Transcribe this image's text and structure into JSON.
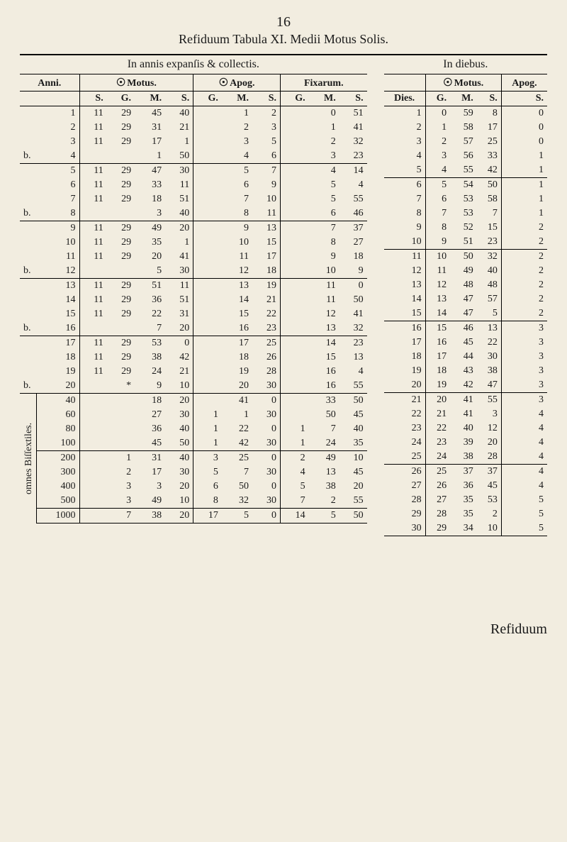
{
  "page_number": "16",
  "title_line": "Refiduum Tabula XI. Medii Motus Solis.",
  "left_caption": "In annis expanſis & collectis.",
  "right_caption": "In diebus.",
  "footer": "Refiduum",
  "left": {
    "head": {
      "anni": "Anni.",
      "motus": "Motus.",
      "apog": "Apog.",
      "fixarum": "Fixarum.",
      "sub": [
        "S.",
        "G.",
        "M.",
        "S.",
        "G.",
        "M.",
        "S.",
        "G.",
        "M.",
        "S."
      ]
    },
    "side_label": "omnes Biſſextiles.",
    "groups": [
      {
        "label": "",
        "rows": [
          {
            "lab": "",
            "n": "1",
            "c": [
              "11",
              "29",
              "45",
              "40",
              "",
              "1",
              "2",
              "",
              "0",
              "51"
            ]
          },
          {
            "lab": "",
            "n": "2",
            "c": [
              "11",
              "29",
              "31",
              "21",
              "",
              "2",
              "3",
              "",
              "1",
              "41"
            ]
          },
          {
            "lab": "",
            "n": "3",
            "c": [
              "11",
              "29",
              "17",
              "1",
              "",
              "3",
              "5",
              "",
              "2",
              "32"
            ]
          },
          {
            "lab": "b.",
            "n": "4",
            "c": [
              "",
              "",
              "1",
              "50",
              "",
              "4",
              "6",
              "",
              "3",
              "23"
            ]
          }
        ]
      },
      {
        "label": "",
        "rows": [
          {
            "lab": "",
            "n": "5",
            "c": [
              "11",
              "29",
              "47",
              "30",
              "",
              "5",
              "7",
              "",
              "4",
              "14"
            ]
          },
          {
            "lab": "",
            "n": "6",
            "c": [
              "11",
              "29",
              "33",
              "11",
              "",
              "6",
              "9",
              "",
              "5",
              "4"
            ]
          },
          {
            "lab": "",
            "n": "7",
            "c": [
              "11",
              "29",
              "18",
              "51",
              "",
              "7",
              "10",
              "",
              "5",
              "55"
            ]
          },
          {
            "lab": "b.",
            "n": "8",
            "c": [
              "",
              "",
              "3",
              "40",
              "",
              "8",
              "11",
              "",
              "6",
              "46"
            ]
          }
        ]
      },
      {
        "label": "",
        "rows": [
          {
            "lab": "",
            "n": "9",
            "c": [
              "11",
              "29",
              "49",
              "20",
              "",
              "9",
              "13",
              "",
              "7",
              "37"
            ]
          },
          {
            "lab": "",
            "n": "10",
            "c": [
              "11",
              "29",
              "35",
              "1",
              "",
              "10",
              "15",
              "",
              "8",
              "27"
            ]
          },
          {
            "lab": "",
            "n": "11",
            "c": [
              "11",
              "29",
              "20",
              "41",
              "",
              "11",
              "17",
              "",
              "9",
              "18"
            ]
          },
          {
            "lab": "b.",
            "n": "12",
            "c": [
              "",
              "",
              "5",
              "30",
              "",
              "12",
              "18",
              "",
              "10",
              "9"
            ]
          }
        ]
      },
      {
        "label": "",
        "rows": [
          {
            "lab": "",
            "n": "13",
            "c": [
              "11",
              "29",
              "51",
              "11",
              "",
              "13",
              "19",
              "",
              "11",
              "0"
            ]
          },
          {
            "lab": "",
            "n": "14",
            "c": [
              "11",
              "29",
              "36",
              "51",
              "",
              "14",
              "21",
              "",
              "11",
              "50"
            ]
          },
          {
            "lab": "",
            "n": "15",
            "c": [
              "11",
              "29",
              "22",
              "31",
              "",
              "15",
              "22",
              "",
              "12",
              "41"
            ]
          },
          {
            "lab": "b.",
            "n": "16",
            "c": [
              "",
              "",
              "7",
              "20",
              "",
              "16",
              "23",
              "",
              "13",
              "32"
            ]
          }
        ]
      },
      {
        "label": "",
        "rows": [
          {
            "lab": "",
            "n": "17",
            "c": [
              "11",
              "29",
              "53",
              "0",
              "",
              "17",
              "25",
              "",
              "14",
              "23"
            ]
          },
          {
            "lab": "",
            "n": "18",
            "c": [
              "11",
              "29",
              "38",
              "42",
              "",
              "18",
              "26",
              "",
              "15",
              "13"
            ]
          },
          {
            "lab": "",
            "n": "19",
            "c": [
              "11",
              "29",
              "24",
              "21",
              "",
              "19",
              "28",
              "",
              "16",
              "4"
            ]
          },
          {
            "lab": "b.",
            "n": "20",
            "c": [
              "",
              "*",
              "9",
              "10",
              "",
              "20",
              "30",
              "",
              "16",
              "55"
            ]
          }
        ]
      },
      {
        "label": "omnes Biſſextiles.",
        "rows": [
          {
            "lab": "",
            "n": "40",
            "c": [
              "",
              "",
              "18",
              "20",
              "",
              "41",
              "0",
              "",
              "33",
              "50"
            ]
          },
          {
            "lab": "",
            "n": "60",
            "c": [
              "",
              "",
              "27",
              "30",
              "1",
              "1",
              "30",
              "",
              "50",
              "45"
            ]
          },
          {
            "lab": "",
            "n": "80",
            "c": [
              "",
              "",
              "36",
              "40",
              "1",
              "22",
              "0",
              "1",
              "7",
              "40"
            ]
          },
          {
            "lab": "",
            "n": "100",
            "c": [
              "",
              "",
              "45",
              "50",
              "1",
              "42",
              "30",
              "1",
              "24",
              "35"
            ]
          }
        ]
      },
      {
        "label": "",
        "rows": [
          {
            "lab": "",
            "n": "200",
            "c": [
              "",
              "1",
              "31",
              "40",
              "3",
              "25",
              "0",
              "2",
              "49",
              "10"
            ]
          },
          {
            "lab": "",
            "n": "300",
            "c": [
              "",
              "2",
              "17",
              "30",
              "5",
              "7",
              "30",
              "4",
              "13",
              "45"
            ]
          },
          {
            "lab": "",
            "n": "400",
            "c": [
              "",
              "3",
              "3",
              "20",
              "6",
              "50",
              "0",
              "5",
              "38",
              "20"
            ]
          },
          {
            "lab": "",
            "n": "500",
            "c": [
              "",
              "3",
              "49",
              "10",
              "8",
              "32",
              "30",
              "7",
              "2",
              "55"
            ]
          }
        ]
      },
      {
        "label": "",
        "rows": [
          {
            "lab": "",
            "n": "1000",
            "c": [
              "",
              "7",
              "38",
              "20",
              "17",
              "5",
              "0",
              "14",
              "5",
              "50"
            ]
          }
        ]
      }
    ]
  },
  "right": {
    "head": {
      "dies": "Dies.",
      "motus": "Motus.",
      "apog": "Apog.",
      "sub": [
        "G.",
        "M.",
        "S.",
        "S."
      ]
    },
    "rows": [
      [
        "1",
        "0",
        "59",
        "8",
        "0"
      ],
      [
        "2",
        "1",
        "58",
        "17",
        "0"
      ],
      [
        "3",
        "2",
        "57",
        "25",
        "0"
      ],
      [
        "4",
        "3",
        "56",
        "33",
        "1"
      ],
      [
        "5",
        "4",
        "55",
        "42",
        "1"
      ],
      [
        "6",
        "5",
        "54",
        "50",
        "1"
      ],
      [
        "7",
        "6",
        "53",
        "58",
        "1"
      ],
      [
        "8",
        "7",
        "53",
        "7",
        "1"
      ],
      [
        "9",
        "8",
        "52",
        "15",
        "2"
      ],
      [
        "10",
        "9",
        "51",
        "23",
        "2"
      ],
      [
        "11",
        "10",
        "50",
        "32",
        "2"
      ],
      [
        "12",
        "11",
        "49",
        "40",
        "2"
      ],
      [
        "13",
        "12",
        "48",
        "48",
        "2"
      ],
      [
        "14",
        "13",
        "47",
        "57",
        "2"
      ],
      [
        "15",
        "14",
        "47",
        "5",
        "2"
      ],
      [
        "16",
        "15",
        "46",
        "13",
        "3"
      ],
      [
        "17",
        "16",
        "45",
        "22",
        "3"
      ],
      [
        "18",
        "17",
        "44",
        "30",
        "3"
      ],
      [
        "19",
        "18",
        "43",
        "38",
        "3"
      ],
      [
        "20",
        "19",
        "42",
        "47",
        "3"
      ],
      [
        "21",
        "20",
        "41",
        "55",
        "3"
      ],
      [
        "22",
        "21",
        "41",
        "3",
        "4"
      ],
      [
        "23",
        "22",
        "40",
        "12",
        "4"
      ],
      [
        "24",
        "23",
        "39",
        "20",
        "4"
      ],
      [
        "25",
        "24",
        "38",
        "28",
        "4"
      ],
      [
        "26",
        "25",
        "37",
        "37",
        "4"
      ],
      [
        "27",
        "26",
        "36",
        "45",
        "4"
      ],
      [
        "28",
        "27",
        "35",
        "53",
        "5"
      ],
      [
        "29",
        "28",
        "35",
        "2",
        "5"
      ],
      [
        "30",
        "29",
        "34",
        "10",
        "5"
      ]
    ],
    "group_breaks": [
      5,
      10,
      15,
      20,
      25
    ]
  },
  "colors": {
    "bg": "#f2ede0",
    "ink": "#1a1a1a"
  }
}
